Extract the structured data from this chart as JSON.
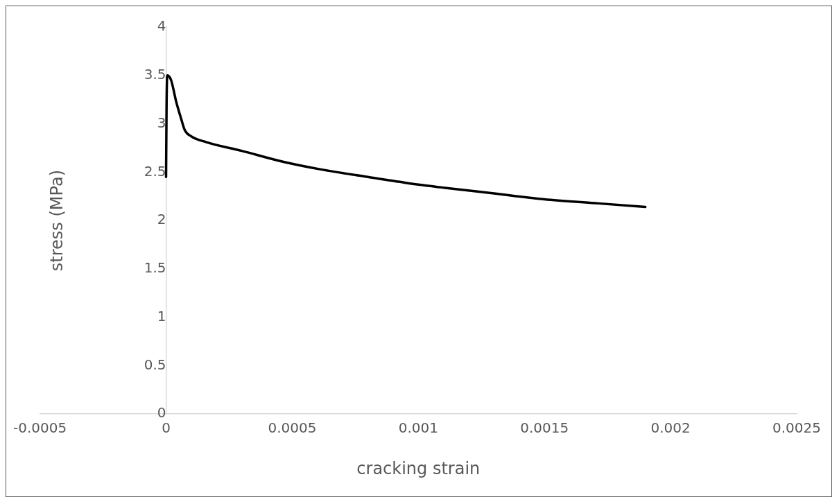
{
  "chart_data": {
    "type": "line",
    "xlabel": "cracking strain",
    "ylabel": "stress (MPa)",
    "x": [
      0,
      2e-06,
      5e-06,
      2e-05,
      4e-05,
      6e-05,
      7.5e-05,
      0.0001,
      0.00016,
      0.0003,
      0.00046,
      0.00061,
      0.0008,
      0.00095,
      0.0011,
      0.0013,
      0.0015,
      0.0017,
      0.0019
    ],
    "series": [
      {
        "color": "#000000",
        "values": [
          2.45,
          3.2,
          3.5,
          3.45,
          3.23,
          3.05,
          2.93,
          2.87,
          2.81,
          2.72,
          2.61,
          2.53,
          2.45,
          2.39,
          2.34,
          2.28,
          2.22,
          2.18,
          2.14
        ]
      }
    ],
    "xlim": [
      -0.0005,
      0.0025
    ],
    "xticks": [
      -0.0005,
      0,
      0.0005,
      0.001,
      0.0015,
      0.002,
      0.0025
    ],
    "ylim": [
      0,
      4
    ],
    "yticks": [
      0,
      0.5,
      1,
      1.5,
      2,
      2.5,
      3,
      3.5,
      4
    ],
    "grid": false,
    "legend": false,
    "marker": "none",
    "line_style": "solid"
  }
}
